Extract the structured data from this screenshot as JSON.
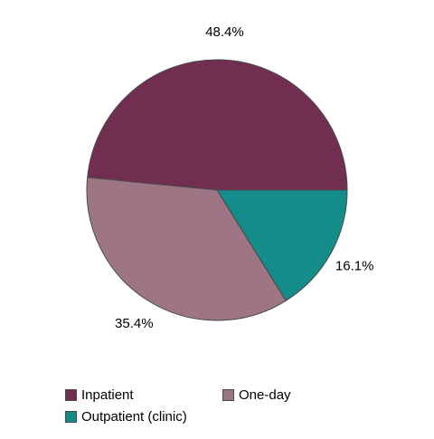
{
  "chart_data": {
    "type": "pie",
    "start_angle_deg": 0,
    "direction": "counterclockwise",
    "slices": [
      {
        "label": "Inpatient",
        "value": 48.4,
        "display": "48.4%",
        "color": "#722e51"
      },
      {
        "label": "One-day",
        "value": 35.4,
        "display": "35.4%",
        "color": "#9e7585"
      },
      {
        "label": "Outpatient (clinic)",
        "value": 16.1,
        "display": "16.1%",
        "color": "#148c89"
      }
    ],
    "legend": {
      "placement": "bottom"
    },
    "slice_border_color": "#4a4a4a"
  }
}
